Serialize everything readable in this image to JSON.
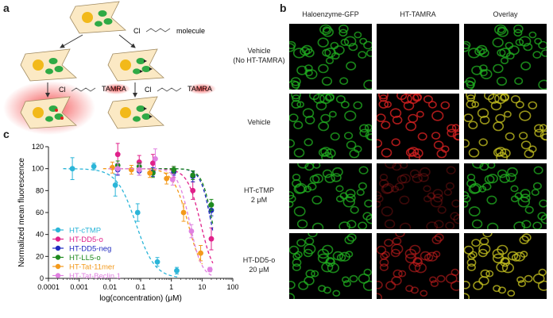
{
  "panel_a": {
    "letter": "a",
    "cl_label": "Cl",
    "molecule_label": "molecule",
    "tamra_label": "TAMRA"
  },
  "panel_b": {
    "letter": "b",
    "columns": [
      "Haloenzyme-GFP",
      "HT-TAMRA",
      "Overlay"
    ],
    "rows": [
      {
        "line1": "Vehicle",
        "line2": "(No HT-TAMRA)"
      },
      {
        "line1": "Vehicle",
        "line2": ""
      },
      {
        "line1": "HT-cTMP",
        "line2": "2 μM"
      },
      {
        "line1": "HT-DD5-o",
        "line2": "20 μM"
      }
    ],
    "colors": {
      "gfp": "#22b122",
      "tamra": "#d42020",
      "overlay": "#c8c420"
    }
  },
  "panel_c": {
    "letter": "c"
  },
  "chart_data": {
    "type": "scatter",
    "xlabel": "log(concentration) (μM)",
    "ylabel": "Normalized mean fluorescence",
    "xscale": "log",
    "xlim": [
      0.0001,
      100
    ],
    "ylim": [
      0,
      120
    ],
    "xticks": [
      "0.0001",
      "0.001",
      "0.01",
      "0.1",
      "1",
      "10",
      "100"
    ],
    "yticks": [
      0,
      20,
      40,
      60,
      80,
      100,
      120
    ],
    "legend_position": "bottom-left",
    "series": [
      {
        "name": "HT-cTMP",
        "color": "#2bb5d8",
        "x": [
          0.0006,
          0.003,
          0.015,
          0.08,
          0.35,
          1.5
        ],
        "y": [
          100,
          102,
          85,
          60,
          15,
          7
        ],
        "err": [
          10,
          3,
          10,
          8,
          4,
          3
        ],
        "fit_ic50": 0.07,
        "fit_hill": 1.4
      },
      {
        "name": "HT-DD5-o",
        "color": "#e0208a",
        "x": [
          0.018,
          0.09,
          0.25,
          1.2,
          5,
          20
        ],
        "y": [
          113,
          106,
          105,
          97,
          80,
          36
        ],
        "err": [
          10,
          6,
          8,
          5,
          8,
          10
        ],
        "fit_ic50": 9,
        "fit_hill": 2
      },
      {
        "name": "HT-DD5-neg",
        "color": "#1f2ac0",
        "x": [
          0.018,
          0.09,
          0.25,
          1.2,
          5,
          20
        ],
        "y": [
          99,
          98,
          97,
          97,
          93,
          62
        ],
        "err": [
          5,
          4,
          4,
          3,
          5,
          5
        ],
        "fit_ic50": 20,
        "fit_hill": 2.5
      },
      {
        "name": "HT-LL5-o",
        "color": "#1f8a1f",
        "x": [
          0.018,
          0.09,
          0.25,
          1.2,
          5,
          20
        ],
        "y": [
          103,
          102,
          96,
          99,
          94,
          67
        ],
        "err": [
          4,
          3,
          4,
          3,
          4,
          5
        ],
        "fit_ic50": 22,
        "fit_hill": 2.5
      },
      {
        "name": "HT-Tat-11mer",
        "color": "#f39a1c",
        "x": [
          0.012,
          0.05,
          0.2,
          0.7,
          2.5,
          9
        ],
        "y": [
          101,
          99,
          96,
          91,
          60,
          23
        ],
        "err": [
          5,
          4,
          4,
          5,
          8,
          7
        ],
        "fit_ic50": 3.5,
        "fit_hill": 1.8
      },
      {
        "name": "HT-Tat-Beclin 1",
        "color": "#e080e0",
        "x": [
          0.018,
          0.09,
          0.3,
          1.1,
          4.5,
          18
        ],
        "y": [
          100,
          99,
          109,
          90,
          43,
          8
        ],
        "err": [
          5,
          5,
          9,
          5,
          6,
          2
        ],
        "fit_ic50": 4,
        "fit_hill": 2.2
      }
    ]
  }
}
